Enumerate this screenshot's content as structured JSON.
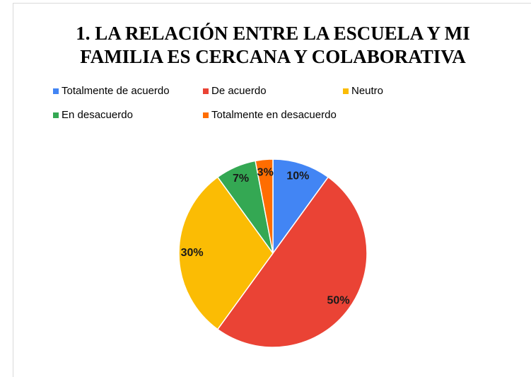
{
  "chart_data": {
    "type": "pie",
    "title": [
      "1. LA RELACIÓN ENTRE LA ESCUELA Y MI",
      "FAMILIA ES CERCANA Y COLABORATIVA"
    ],
    "categories": [
      "Totalmente de acuerdo",
      "De acuerdo",
      "Neutro",
      "En desacuerdo",
      "Totalmente en desacuerdo"
    ],
    "values": [
      10,
      50,
      30,
      7,
      3
    ],
    "value_labels": [
      "10%",
      "50%",
      "30%",
      "7%",
      "3%"
    ],
    "colors": [
      "#4285f4",
      "#ea4335",
      "#fbbc04",
      "#34a853",
      "#ff6d01"
    ],
    "legend": "top"
  }
}
